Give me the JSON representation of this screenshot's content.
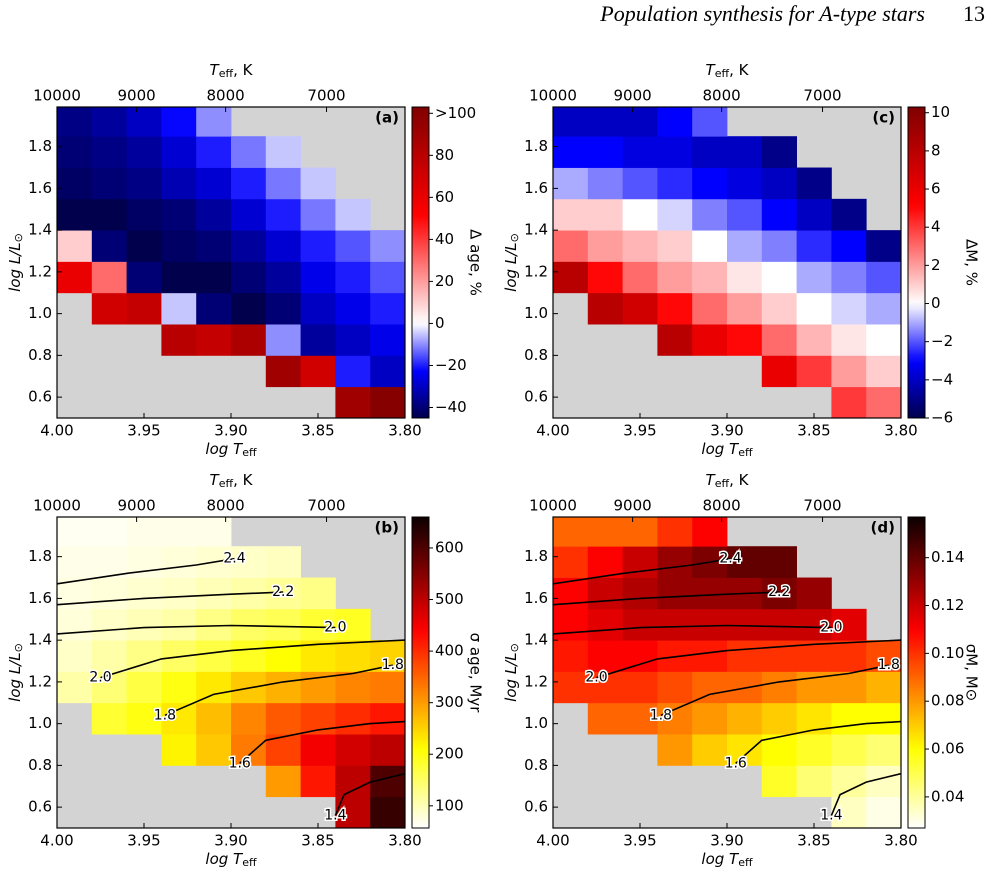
{
  "header": {
    "title": "Population synthesis for A-type stars",
    "page": "13"
  },
  "chart_data": [
    {
      "type": "heatmap",
      "panel_label": "(a)",
      "xlabel": {
        "text": "log T",
        "sub": "eff"
      },
      "x2label": {
        "text": "T",
        "sub": "eff",
        "suffix": ", K"
      },
      "ylabel": {
        "text": "log L/L",
        "sub": "⊙"
      },
      "colorbar_label": "Δ age, %",
      "xlim": [
        4.0,
        3.8
      ],
      "xticks": [
        {
          "value": 4.0,
          "label": "4.00"
        },
        3.95,
        {
          "value": 3.9,
          "label": "3.90"
        },
        3.85,
        {
          "value": 3.8,
          "label": "3.80"
        }
      ],
      "x2ticks": [
        10000,
        9000,
        8000,
        7000
      ],
      "ylim": [
        0.5,
        1.99
      ],
      "yticks": [
        0.6,
        0.8,
        {
          "value": 1.0,
          "label": "1.0"
        },
        1.2,
        1.4,
        1.6,
        1.8
      ],
      "colormap": "seismic",
      "vcenter": 0,
      "clim": [
        -45,
        103
      ],
      "cticks": [
        {
          "value": -40,
          "label": "−40"
        },
        {
          "value": -20,
          "label": "−20"
        },
        0,
        20,
        40,
        60,
        80,
        {
          "value": 100,
          "label": ">100"
        }
      ],
      "background": "#d3d3d3",
      "x": [
        3.99,
        3.97,
        3.95,
        3.93,
        3.91,
        3.89,
        3.87,
        3.85,
        3.83,
        3.81
      ],
      "y": [
        0.575,
        0.725,
        0.875,
        1.025,
        1.175,
        1.325,
        1.475,
        1.625,
        1.775,
        1.925
      ],
      "values": [
        [
          null,
          null,
          null,
          null,
          null,
          null,
          null,
          null,
          90,
          100
        ],
        [
          null,
          null,
          null,
          null,
          null,
          null,
          90,
          70,
          -20,
          -30
        ],
        [
          null,
          null,
          null,
          80,
          75,
          85,
          -10,
          -35,
          -30,
          -25
        ],
        [
          null,
          70,
          75,
          -5,
          -40,
          -45,
          -40,
          -30,
          -25,
          -20
        ],
        [
          60,
          30,
          -40,
          -45,
          -45,
          -40,
          -35,
          -25,
          -20,
          -15
        ],
        [
          10,
          -40,
          -45,
          -42,
          -40,
          -35,
          -28,
          -20,
          -15,
          -10
        ],
        [
          -45,
          -45,
          -42,
          -40,
          -35,
          -28,
          -20,
          -12,
          -5,
          null
        ],
        [
          -42,
          -40,
          -38,
          -32,
          -28,
          -20,
          -12,
          -5,
          null,
          null
        ],
        [
          -40,
          -38,
          -35,
          -28,
          -20,
          -12,
          -5,
          null,
          null,
          null
        ],
        [
          -38,
          -35,
          -30,
          -22,
          -10,
          null,
          null,
          null,
          null,
          null
        ]
      ]
    },
    {
      "type": "heatmap",
      "panel_label": "(b)",
      "xlabel": {
        "text": "log T",
        "sub": "eff"
      },
      "x2label": {
        "text": "T",
        "sub": "eff",
        "suffix": ", K"
      },
      "ylabel": {
        "text": "log L/L",
        "sub": "⊙"
      },
      "colorbar_label": "σ age, Myr",
      "xlim": [
        4.0,
        3.8
      ],
      "xticks": [
        {
          "value": 4.0,
          "label": "4.00"
        },
        3.95,
        {
          "value": 3.9,
          "label": "3.90"
        },
        3.85,
        {
          "value": 3.8,
          "label": "3.80"
        }
      ],
      "x2ticks": [
        10000,
        9000,
        8000,
        7000
      ],
      "ylim": [
        0.5,
        1.99
      ],
      "yticks": [
        0.6,
        0.8,
        {
          "value": 1.0,
          "label": "1.0"
        },
        1.2,
        1.4,
        1.6,
        1.8
      ],
      "colormap": "hot_r",
      "clim": [
        57,
        660
      ],
      "cticks": [
        100,
        200,
        300,
        400,
        500,
        600
      ],
      "background": "#d3d3d3",
      "x": [
        3.99,
        3.97,
        3.95,
        3.93,
        3.91,
        3.89,
        3.87,
        3.85,
        3.83,
        3.81
      ],
      "y": [
        0.575,
        0.725,
        0.875,
        1.025,
        1.175,
        1.325,
        1.475,
        1.625,
        1.775,
        1.925
      ],
      "values": [
        [
          null,
          null,
          null,
          null,
          null,
          null,
          null,
          null,
          500,
          620
        ],
        [
          null,
          null,
          null,
          null,
          null,
          null,
          300,
          420,
          500,
          600
        ],
        [
          null,
          null,
          null,
          220,
          260,
          330,
          380,
          450,
          480,
          500
        ],
        [
          null,
          180,
          200,
          230,
          270,
          320,
          360,
          380,
          400,
          420
        ],
        [
          110,
          140,
          170,
          200,
          230,
          260,
          280,
          300,
          320,
          330
        ],
        [
          90,
          110,
          130,
          150,
          170,
          190,
          210,
          230,
          240,
          250
        ],
        [
          80,
          90,
          100,
          110,
          130,
          150,
          160,
          180,
          190,
          null
        ],
        [
          75,
          80,
          85,
          90,
          100,
          110,
          120,
          130,
          null,
          null
        ],
        [
          70,
          70,
          75,
          80,
          85,
          90,
          95,
          null,
          null,
          null
        ],
        [
          65,
          65,
          70,
          70,
          70,
          null,
          null,
          null,
          null,
          null
        ]
      ],
      "contours": [
        {
          "level": 2.4,
          "label_at": "end",
          "x": [
            4.0,
            3.96,
            3.92,
            3.898
          ],
          "y": [
            1.67,
            1.72,
            1.76,
            1.79
          ]
        },
        {
          "level": 2.2,
          "label_at": "end",
          "x": [
            4.0,
            3.95,
            3.9,
            3.87
          ],
          "y": [
            1.57,
            1.6,
            1.62,
            1.63
          ]
        },
        {
          "level": {
            "value": 2.0,
            "label": "2.0"
          },
          "label_at": "end",
          "x": [
            4.0,
            3.95,
            3.9,
            3.84
          ],
          "y": [
            1.43,
            1.46,
            1.47,
            1.46
          ]
        },
        {
          "level": {
            "value": 2.0,
            "label": "2.0"
          },
          "label_at": "start",
          "x": [
            3.975,
            3.94,
            3.9,
            3.85,
            3.8
          ],
          "y": [
            1.22,
            1.31,
            1.35,
            1.38,
            1.4
          ]
        },
        {
          "level": 1.8,
          "label_at": "both",
          "x": [
            3.938,
            3.91,
            3.87,
            3.83,
            3.807
          ],
          "y": [
            1.04,
            1.14,
            1.2,
            1.24,
            1.28
          ]
        },
        {
          "level": 1.6,
          "label_at": "start",
          "x": [
            3.895,
            3.88,
            3.85,
            3.82,
            3.8
          ],
          "y": [
            0.81,
            0.92,
            0.97,
            1.0,
            1.01
          ]
        },
        {
          "level": 1.4,
          "label_at": "start",
          "x": [
            3.84,
            3.835,
            3.82,
            3.8
          ],
          "y": [
            0.56,
            0.66,
            0.72,
            0.76
          ]
        }
      ]
    },
    {
      "type": "heatmap",
      "panel_label": "(c)",
      "xlabel": {
        "text": "log T",
        "sub": "eff"
      },
      "x2label": {
        "text": "T",
        "sub": "eff",
        "suffix": ", K"
      },
      "ylabel": {
        "text": "log L/L",
        "sub": "⊙"
      },
      "colorbar_label": "ΔM, %",
      "xlim": [
        4.0,
        3.8
      ],
      "xticks": [
        {
          "value": 4.0,
          "label": "4.00"
        },
        3.95,
        {
          "value": 3.9,
          "label": "3.90"
        },
        3.85,
        {
          "value": 3.8,
          "label": "3.80"
        }
      ],
      "x2ticks": [
        10000,
        9000,
        8000,
        7000
      ],
      "ylim": [
        0.5,
        1.99
      ],
      "yticks": [
        0.6,
        0.8,
        {
          "value": 1.0,
          "label": "1.0"
        },
        1.2,
        1.4,
        1.6,
        1.8
      ],
      "colormap": "seismic",
      "vcenter": 0,
      "clim": [
        -6,
        10.3
      ],
      "cticks": [
        {
          "value": -6,
          "label": "−6"
        },
        {
          "value": -4,
          "label": "−4"
        },
        {
          "value": -2,
          "label": "−2"
        },
        0,
        2,
        4,
        6,
        8,
        10
      ],
      "background": "#d3d3d3",
      "x": [
        3.99,
        3.97,
        3.95,
        3.93,
        3.91,
        3.89,
        3.87,
        3.85,
        3.83,
        3.81
      ],
      "y": [
        0.575,
        0.725,
        0.875,
        1.025,
        1.175,
        1.325,
        1.475,
        1.625,
        1.775,
        1.925
      ],
      "values": [
        [
          null,
          null,
          null,
          null,
          null,
          null,
          null,
          null,
          4,
          3
        ],
        [
          null,
          null,
          null,
          null,
          null,
          null,
          6,
          4,
          2,
          1
        ],
        [
          null,
          null,
          null,
          8,
          6,
          5,
          3,
          1.5,
          0.5,
          0
        ],
        [
          null,
          8,
          7,
          5,
          3,
          2,
          1,
          0,
          -0.5,
          -1
        ],
        [
          8,
          5,
          3,
          2,
          1.5,
          0.5,
          0,
          -1,
          -1.5,
          -2
        ],
        [
          3,
          2,
          1.5,
          1,
          0,
          -1,
          -1.5,
          -2.5,
          -3,
          -5
        ],
        [
          1,
          1,
          0,
          -0.5,
          -1.5,
          -2,
          -3,
          -4,
          -5,
          null
        ],
        [
          -1,
          -1.5,
          -2,
          -2.5,
          -3,
          -3.5,
          -4,
          -5,
          null,
          null
        ],
        [
          -3,
          -3,
          -3.5,
          -3.5,
          -4,
          -4,
          -5,
          null,
          null,
          null
        ],
        [
          -4,
          -4,
          -4,
          -3,
          -2,
          null,
          null,
          null,
          null,
          null
        ]
      ]
    },
    {
      "type": "heatmap",
      "panel_label": "(d)",
      "xlabel": {
        "text": "log T",
        "sub": "eff"
      },
      "x2label": {
        "text": "T",
        "sub": "eff",
        "suffix": ", K"
      },
      "ylabel": {
        "text": "log L/L",
        "sub": "⊙"
      },
      "colorbar_label": "σM, M⊙",
      "xlim": [
        4.0,
        3.8
      ],
      "xticks": [
        {
          "value": 4.0,
          "label": "4.00"
        },
        3.95,
        {
          "value": 3.9,
          "label": "3.90"
        },
        3.85,
        {
          "value": 3.8,
          "label": "3.80"
        }
      ],
      "x2ticks": [
        10000,
        9000,
        8000,
        7000
      ],
      "ylim": [
        0.5,
        1.99
      ],
      "yticks": [
        0.6,
        0.8,
        {
          "value": 1.0,
          "label": "1.0"
        },
        1.2,
        1.4,
        1.6,
        1.8
      ],
      "colormap": "hot_r",
      "clim": [
        0.027,
        0.157
      ],
      "cticks": [
        0.04,
        0.06,
        0.08,
        {
          "value": 0.1,
          "label": "0.10"
        },
        0.12,
        0.14
      ],
      "background": "#d3d3d3",
      "x": [
        3.99,
        3.97,
        3.95,
        3.93,
        3.91,
        3.89,
        3.87,
        3.85,
        3.83,
        3.81
      ],
      "y": [
        0.575,
        0.725,
        0.875,
        1.025,
        1.175,
        1.325,
        1.475,
        1.625,
        1.775,
        1.925
      ],
      "values": [
        [
          null,
          null,
          null,
          null,
          null,
          null,
          null,
          null,
          0.035,
          0.03
        ],
        [
          null,
          null,
          null,
          null,
          null,
          null,
          0.055,
          0.045,
          0.04,
          0.035
        ],
        [
          null,
          null,
          null,
          0.08,
          0.07,
          0.065,
          0.06,
          0.055,
          0.05,
          0.045
        ],
        [
          null,
          0.09,
          0.09,
          0.085,
          0.08,
          0.075,
          0.07,
          0.065,
          0.06,
          0.06
        ],
        [
          0.1,
          0.1,
          0.1,
          0.095,
          0.09,
          0.09,
          0.085,
          0.08,
          0.08,
          0.075
        ],
        [
          0.105,
          0.11,
          0.11,
          0.105,
          0.105,
          0.1,
          0.1,
          0.1,
          0.1,
          0.095
        ],
        [
          0.11,
          0.115,
          0.12,
          0.12,
          0.12,
          0.12,
          0.12,
          0.12,
          0.115,
          null
        ],
        [
          0.11,
          0.12,
          0.125,
          0.13,
          0.13,
          0.13,
          0.135,
          0.13,
          null,
          null
        ],
        [
          0.1,
          0.11,
          0.12,
          0.13,
          0.135,
          0.14,
          0.14,
          null,
          null,
          null
        ],
        [
          0.09,
          0.09,
          0.09,
          0.1,
          0.11,
          null,
          null,
          null,
          null,
          null
        ]
      ],
      "contours": [
        {
          "level": 2.4,
          "label_at": "end",
          "x": [
            4.0,
            3.96,
            3.92,
            3.898
          ],
          "y": [
            1.67,
            1.72,
            1.76,
            1.79
          ]
        },
        {
          "level": 2.2,
          "label_at": "end",
          "x": [
            4.0,
            3.95,
            3.9,
            3.87
          ],
          "y": [
            1.57,
            1.6,
            1.62,
            1.63
          ]
        },
        {
          "level": {
            "value": 2.0,
            "label": "2.0"
          },
          "label_at": "end",
          "x": [
            4.0,
            3.95,
            3.9,
            3.84
          ],
          "y": [
            1.43,
            1.46,
            1.47,
            1.46
          ]
        },
        {
          "level": {
            "value": 2.0,
            "label": "2.0"
          },
          "label_at": "start",
          "x": [
            3.975,
            3.94,
            3.9,
            3.85,
            3.8
          ],
          "y": [
            1.22,
            1.31,
            1.35,
            1.38,
            1.4
          ]
        },
        {
          "level": 1.8,
          "label_at": "both",
          "x": [
            3.938,
            3.91,
            3.87,
            3.83,
            3.807
          ],
          "y": [
            1.04,
            1.14,
            1.2,
            1.24,
            1.28
          ]
        },
        {
          "level": 1.6,
          "label_at": "start",
          "x": [
            3.895,
            3.88,
            3.85,
            3.82,
            3.8
          ],
          "y": [
            0.81,
            0.92,
            0.97,
            1.0,
            1.01
          ]
        },
        {
          "level": 1.4,
          "label_at": "start",
          "x": [
            3.84,
            3.835,
            3.82,
            3.8
          ],
          "y": [
            0.56,
            0.66,
            0.72,
            0.76
          ]
        }
      ]
    }
  ]
}
